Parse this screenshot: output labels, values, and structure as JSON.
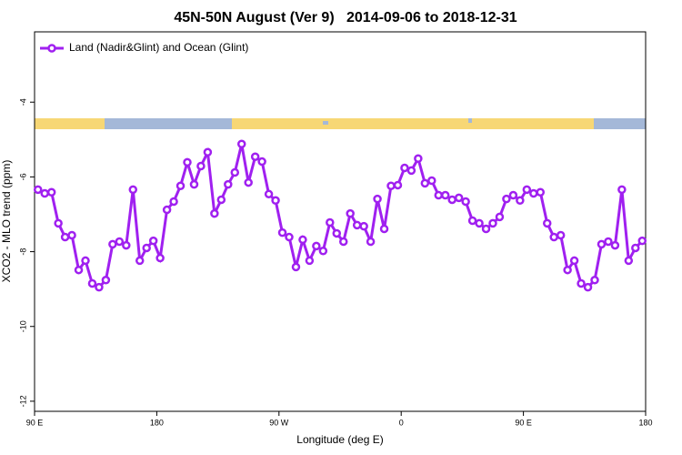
{
  "chart_data": {
    "type": "line",
    "title": "45N-50N August (Ver 9)   2014-09-06 to 2018-12-31",
    "x_label": "Longitude (deg E)",
    "y_label": "XCO2 - MLO trend (ppm)",
    "xlim": [
      90,
      540
    ],
    "ylim": [
      -12.27,
      -2.12
    ],
    "xticks": [
      {
        "value": 90,
        "label": "90 E"
      },
      180,
      {
        "value": 270,
        "label": "90 W"
      },
      {
        "value": 360,
        "label": "0"
      },
      {
        "value": 450,
        "label": "90 E"
      },
      {
        "value": 540,
        "label": "180"
      }
    ],
    "yticks": [
      -4,
      -6,
      -8,
      -10,
      -12
    ],
    "legend": "top-left",
    "x": [
      92.5,
      97.5,
      102.5,
      107.5,
      112.5,
      117.5,
      122.5,
      127.5,
      132.5,
      137.5,
      142.5,
      147.5,
      152.5,
      157.5,
      162.5,
      167.5,
      172.5,
      177.5,
      182.5,
      187.5,
      192.5,
      197.5,
      202.5,
      207.5,
      212.5,
      217.5,
      222.5,
      227.5,
      232.5,
      237.5,
      242.5,
      247.5,
      252.5,
      257.5,
      262.5,
      267.5,
      272.5,
      277.5,
      282.5,
      287.5,
      292.5,
      297.5,
      302.5,
      307.5,
      312.5,
      317.5,
      322.5,
      327.5,
      332.5,
      337.5,
      342.5,
      347.5,
      352.5,
      357.5,
      362.5,
      367.5,
      372.5,
      377.5,
      382.5,
      387.5,
      392.5,
      397.5,
      402.5,
      407.5,
      412.5,
      417.5,
      422.5,
      427.5,
      432.5,
      437.5,
      442.5,
      447.5,
      452.5,
      457.5,
      462.5,
      467.5,
      472.5,
      477.5,
      482.5,
      487.5,
      492.5,
      497.5,
      502.5,
      507.5,
      512.5,
      517.5,
      522.5,
      527.5,
      532.5,
      537.5
    ],
    "series": [
      {
        "name": "Land (Nadir&Glint) and Ocean (Glint)",
        "color": "#a020f0",
        "values": [
          -6.34,
          -6.44,
          -6.41,
          -7.24,
          -7.61,
          -7.56,
          -8.49,
          -8.24,
          -8.85,
          -8.95,
          -8.76,
          -7.8,
          -7.73,
          -7.83,
          -6.34,
          -8.24,
          -7.9,
          -7.71,
          -8.17,
          -6.88,
          -6.66,
          -6.24,
          -5.61,
          -6.2,
          -5.71,
          -5.34,
          -6.98,
          -6.61,
          -6.2,
          -5.88,
          -5.12,
          -6.15,
          -5.46,
          -5.59,
          -6.46,
          -6.63,
          -7.49,
          -7.61,
          -8.41,
          -7.68,
          -8.24,
          -7.85,
          -7.98,
          -7.22,
          -7.51,
          -7.73,
          -6.98,
          -7.29,
          -7.32,
          -7.73,
          -6.59,
          -7.39,
          -6.24,
          -6.22,
          -5.76,
          -5.83,
          -5.51,
          -6.17,
          -6.1,
          -6.49,
          -6.49,
          -6.61,
          -6.56,
          -6.66,
          -7.17,
          -7.24,
          -7.39,
          -7.24,
          -7.07,
          -6.59,
          -6.49,
          -6.63,
          -6.34,
          -6.44,
          -6.41,
          -7.24,
          -7.61,
          -7.56,
          -8.49,
          -8.24,
          -8.85,
          -8.95,
          -8.76,
          -7.8,
          -7.73,
          -7.83,
          -6.34,
          -8.24,
          -7.9,
          -7.71
        ]
      }
    ]
  }
}
